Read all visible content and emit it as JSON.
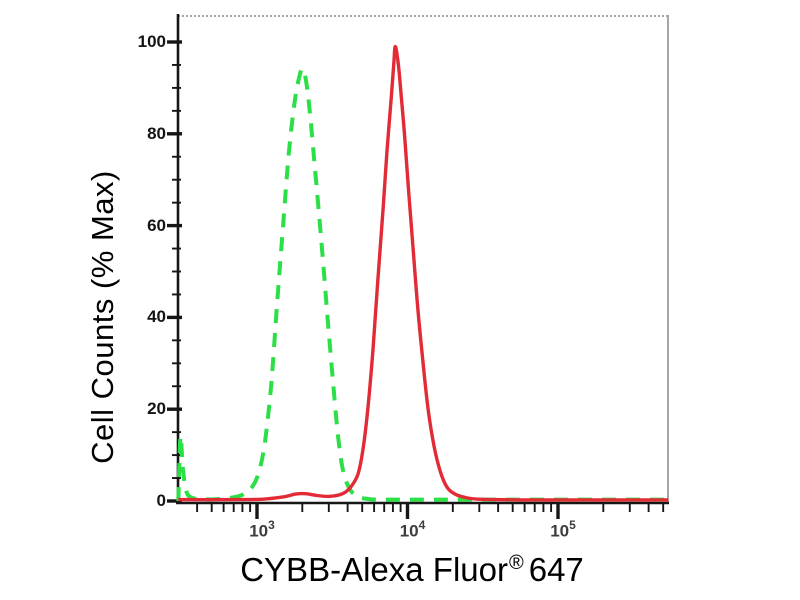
{
  "chart_data": {
    "type": "line",
    "subtype": "flow-cytometry-histogram",
    "title": "",
    "xlabel": "CYBB-Alexa Fluor® 647",
    "ylabel": "Cell Counts (% Max)",
    "x_scale": "log10",
    "x_range": [
      300,
      540000
    ],
    "y_range": [
      0,
      100
    ],
    "grid": false,
    "legend": "none",
    "y_major_ticks": [
      0,
      20,
      40,
      60,
      80,
      100
    ],
    "y_minor_tick_step": 5,
    "x_major_ticks": [
      1000,
      10000,
      100000
    ],
    "x_tick_labels": [
      {
        "value": 1000,
        "base": "10",
        "exp": "3"
      },
      {
        "value": 10000,
        "base": "10",
        "exp": "4"
      },
      {
        "value": 100000,
        "base": "10",
        "exp": "5"
      }
    ],
    "colors": {
      "green_dashed": "#2bdf47",
      "red_solid": "#e32b35",
      "axis": "#161616",
      "frame": "#a6a6a6"
    },
    "series": [
      {
        "id": "green-dashed",
        "name": "green dashed curve (unstained control)",
        "color": "#2bdf47",
        "style": "dashed",
        "peak_x": 2030,
        "peak_y": 94,
        "points": [
          [
            300,
            0
          ],
          [
            310,
            14
          ],
          [
            322,
            7
          ],
          [
            340,
            2
          ],
          [
            370,
            0.7
          ],
          [
            430,
            0.4
          ],
          [
            520,
            0.4
          ],
          [
            640,
            0.6
          ],
          [
            780,
            1.2
          ],
          [
            900,
            2.5
          ],
          [
            1010,
            5.5
          ],
          [
            1120,
            12
          ],
          [
            1240,
            25
          ],
          [
            1360,
            43
          ],
          [
            1490,
            60
          ],
          [
            1630,
            76
          ],
          [
            1780,
            87
          ],
          [
            1930,
            93
          ],
          [
            2030,
            94
          ],
          [
            2130,
            91
          ],
          [
            2240,
            85
          ],
          [
            2390,
            75
          ],
          [
            2560,
            64
          ],
          [
            2750,
            52
          ],
          [
            2960,
            39
          ],
          [
            3200,
            26
          ],
          [
            3460,
            14
          ],
          [
            3740,
            6.5
          ],
          [
            4150,
            2.5
          ],
          [
            4700,
            1
          ],
          [
            5600,
            0.4
          ],
          [
            8000,
            0.3
          ],
          [
            20000,
            0.3
          ],
          [
            100000,
            0.3
          ],
          [
            540000,
            0.3
          ]
        ]
      },
      {
        "id": "red-solid",
        "name": "red solid curve (CYBB antibody stained)",
        "color": "#e32b35",
        "style": "solid",
        "peak_x": 8300,
        "peak_y": 99,
        "points": [
          [
            300,
            0.3
          ],
          [
            700,
            0.3
          ],
          [
            1100,
            0.4
          ],
          [
            1500,
            0.9
          ],
          [
            1800,
            1.5
          ],
          [
            2100,
            1.6
          ],
          [
            2500,
            1.2
          ],
          [
            3000,
            1.0
          ],
          [
            3500,
            1.3
          ],
          [
            3900,
            2
          ],
          [
            4300,
            3.5
          ],
          [
            4700,
            6
          ],
          [
            5050,
            11
          ],
          [
            5450,
            20
          ],
          [
            5900,
            33
          ],
          [
            6350,
            48
          ],
          [
            6900,
            64
          ],
          [
            7300,
            76
          ],
          [
            7800,
            88
          ],
          [
            8100,
            95
          ],
          [
            8300,
            99
          ],
          [
            8700,
            95
          ],
          [
            9100,
            88
          ],
          [
            9600,
            79
          ],
          [
            10200,
            67
          ],
          [
            10900,
            55
          ],
          [
            11700,
            42
          ],
          [
            12700,
            30
          ],
          [
            13700,
            20
          ],
          [
            15000,
            12
          ],
          [
            16500,
            6.5
          ],
          [
            18300,
            3
          ],
          [
            20700,
            1.5
          ],
          [
            24000,
            0.8
          ],
          [
            30000,
            0.4
          ],
          [
            60000,
            0.25
          ],
          [
            150000,
            0.25
          ],
          [
            540000,
            0.25
          ]
        ]
      }
    ]
  },
  "labels": {
    "ylabel": "Cell Counts (% Max)",
    "xlabel_main": "CYBB-Alexa Fluor",
    "xlabel_reg": "®",
    "xlabel_suffix": "647"
  }
}
